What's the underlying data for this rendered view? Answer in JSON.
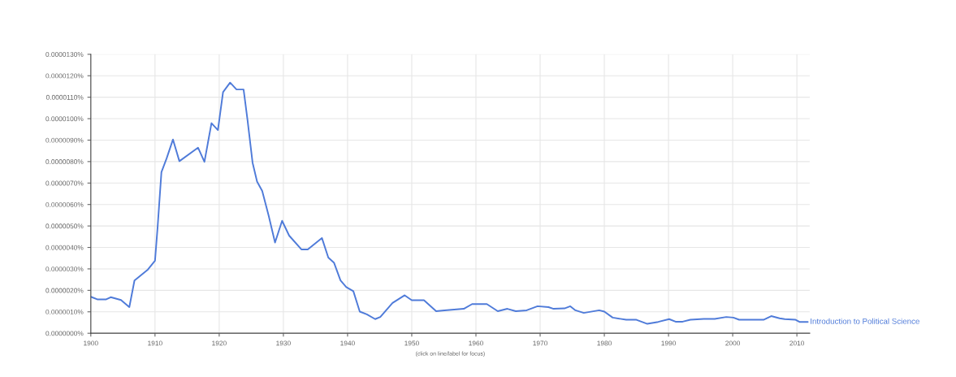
{
  "chart_data": {
    "type": "line",
    "xlabel": "(click on line/label for focus)",
    "x": [
      1900,
      1901,
      1902.4,
      1903.1,
      1904.7,
      1906,
      1906.8,
      1908.9,
      1910,
      1910.4,
      1911,
      1911.8,
      1912.8,
      1913.8,
      1916.7,
      1917.7,
      1918.8,
      1919.8,
      1920.6,
      1921.7,
      1922.7,
      1923.8,
      1924.4,
      1925.2,
      1925.9,
      1926.7,
      1927.7,
      1928.7,
      1929.8,
      1930.9,
      1932.8,
      1933.8,
      1936,
      1937,
      1937.9,
      1938.9,
      1939.8,
      1940.9,
      1941.9,
      1943,
      1944.3,
      1945.1,
      1947,
      1948.9,
      1950,
      1951.9,
      1953.8,
      1955.1,
      1958.1,
      1959.4,
      1961.7,
      1963.4,
      1964.9,
      1966.2,
      1967.9,
      1969.6,
      1971.3,
      1972.1,
      1973.8,
      1974.7,
      1975.5,
      1976.8,
      1979.2,
      1980,
      1981.3,
      1983.4,
      1985,
      1986.7,
      1988.4,
      1990.1,
      1991.1,
      1992.2,
      1993.4,
      1995.5,
      1997.2,
      1999,
      2000.1,
      2001,
      2004.8,
      2006,
      2007.3,
      2008.1,
      2009.8,
      2010.4,
      2011.7
    ],
    "series": [
      {
        "name": "Introduction to Political Science",
        "color": "#4f7bd9",
        "values": [
          1.7e-06,
          1.58e-06,
          1.58e-06,
          1.68e-06,
          1.55e-06,
          1.22e-06,
          2.46e-06,
          2.97e-06,
          3.38e-06,
          4.92e-06,
          7.51e-06,
          8.14e-06,
          9.03e-06,
          8.02e-06,
          8.65e-06,
          7.99e-06,
          9.79e-06,
          9.47e-06,
          1.124e-05,
          1.168e-05,
          1.136e-05,
          1.136e-05,
          9.97e-06,
          7.95e-06,
          7.07e-06,
          6.63e-06,
          5.49e-06,
          4.23e-06,
          5.24e-06,
          4.55e-06,
          3.91e-06,
          3.91e-06,
          4.44e-06,
          3.53e-06,
          3.28e-06,
          2.46e-06,
          2.15e-06,
          1.96e-06,
          1.01e-06,
          8.8e-07,
          6.6e-07,
          7.6e-07,
          1.41e-06,
          1.77e-06,
          1.54e-06,
          1.54e-06,
          1.03e-06,
          1.07e-06,
          1.14e-06,
          1.36e-06,
          1.36e-06,
          1.03e-06,
          1.14e-06,
          1.03e-06,
          1.07e-06,
          1.26e-06,
          1.22e-06,
          1.14e-06,
          1.16e-06,
          1.26e-06,
          1.07e-06,
          9.5e-07,
          1.07e-06,
          1.01e-06,
          7.3e-07,
          6.3e-07,
          6.3e-07,
          4.4e-07,
          5.3e-07,
          6.6e-07,
          5.4e-07,
          5.4e-07,
          6.3e-07,
          6.7e-07,
          6.7e-07,
          7.6e-07,
          7.3e-07,
          6.3e-07,
          6.3e-07,
          8e-07,
          7e-07,
          6.6e-07,
          6.3e-07,
          5.3e-07,
          5.3e-07
        ]
      }
    ],
    "xlim": [
      1900,
      2012
    ],
    "xticks": [
      1900,
      1910,
      1920,
      1930,
      1940,
      1950,
      1960,
      1970,
      1980,
      1990,
      2000,
      2010
    ],
    "ylim": [
      0,
      1.3e-05
    ],
    "yticks": [
      {
        "value": 0,
        "label": "0.0000000%"
      },
      {
        "value": 1e-06,
        "label": "0.0000010%"
      },
      {
        "value": 2e-06,
        "label": "0.0000020%"
      },
      {
        "value": 3e-06,
        "label": "0.0000030%"
      },
      {
        "value": 4e-06,
        "label": "0.0000040%"
      },
      {
        "value": 5e-06,
        "label": "0.0000050%"
      },
      {
        "value": 6e-06,
        "label": "0.0000060%"
      },
      {
        "value": 7e-06,
        "label": "0.0000070%"
      },
      {
        "value": 8e-06,
        "label": "0.0000080%"
      },
      {
        "value": 9e-06,
        "label": "0.0000090%"
      },
      {
        "value": 1e-05,
        "label": "0.0000100%"
      },
      {
        "value": 1.1e-05,
        "label": "0.0000110%"
      },
      {
        "value": 1.2e-05,
        "label": "0.0000120%"
      },
      {
        "value": 1.3e-05,
        "label": "0.0000130%"
      }
    ],
    "grid": true,
    "legend": false,
    "marker": "none",
    "line_style": "solid"
  }
}
